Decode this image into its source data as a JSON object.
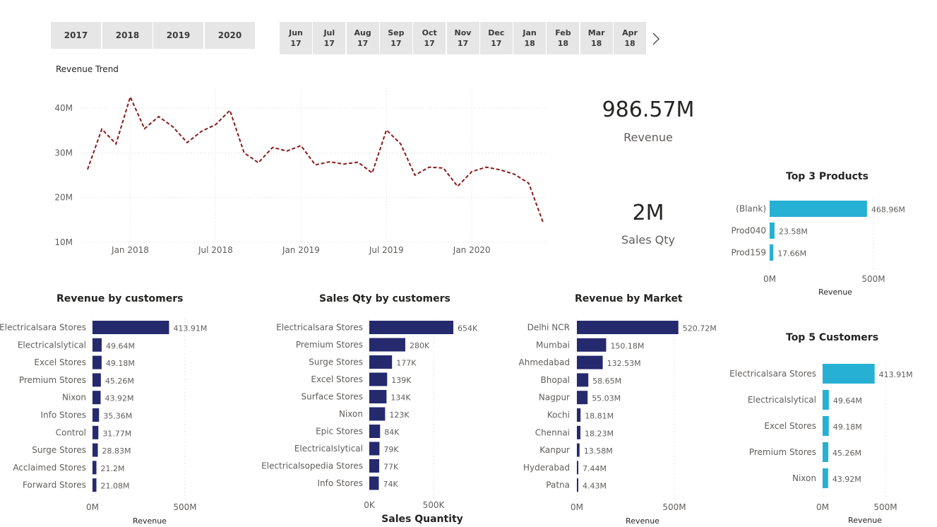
{
  "years": [
    "2017",
    "2018",
    "2019",
    "2020"
  ],
  "months": [
    {
      "m": "Jun",
      "y": "17"
    },
    {
      "m": "Jul",
      "y": "17"
    },
    {
      "m": "Aug",
      "y": "17"
    },
    {
      "m": "Sep",
      "y": "17"
    },
    {
      "m": "Oct",
      "y": "17"
    },
    {
      "m": "Nov",
      "y": "17"
    },
    {
      "m": "Dec",
      "y": "17"
    },
    {
      "m": "Jan",
      "y": "18"
    },
    {
      "m": "Feb",
      "y": "18"
    },
    {
      "m": "Mar",
      "y": "18"
    },
    {
      "m": "Apr",
      "y": "18"
    }
  ],
  "kpis": {
    "revenue_value": "986.57M",
    "revenue_label": "Revenue",
    "qty_value": "2M",
    "qty_label": "Sales Qty"
  },
  "colors": {
    "navy": "#252a6e",
    "cyan": "#26b0d4",
    "trend": "#8b1a1a"
  },
  "chart_data": [
    {
      "id": "revenue-trend",
      "type": "line",
      "title": "Revenue Trend",
      "x_start": "2017-10",
      "x_ticks": [
        "Jan 2018",
        "Jul 2018",
        "Jan 2019",
        "Jul 2019",
        "Jan 2020"
      ],
      "y_ticks": [
        "40M",
        "30M",
        "20M",
        "10M"
      ],
      "ylim": [
        10,
        40
      ],
      "grid": true,
      "values": [
        26.3,
        35.3,
        32.0,
        42.5,
        35.4,
        38.1,
        35.8,
        32.3,
        34.8,
        36.3,
        39.5,
        30.0,
        27.8,
        31.2,
        30.4,
        31.6,
        27.3,
        28.0,
        27.5,
        27.9,
        25.5,
        35.1,
        32.0,
        25.0,
        26.8,
        26.6,
        22.5,
        25.8,
        26.8,
        26.2,
        25.2,
        23.2,
        14.5
      ]
    },
    {
      "id": "top-3-products",
      "type": "bar",
      "orientation": "horizontal",
      "title": "Top 3 Products",
      "xlabel": "Revenue",
      "x_ticks": [
        "0M",
        "500M"
      ],
      "xlim": [
        0,
        500
      ],
      "categories": [
        "(Blank)",
        "Prod040",
        "Prod159"
      ],
      "values": [
        468.96,
        23.58,
        17.66
      ],
      "labels": [
        "468.96M",
        "23.58M",
        "17.66M"
      ]
    },
    {
      "id": "revenue-by-customers",
      "type": "bar",
      "orientation": "horizontal",
      "title": "Revenue by customers",
      "xlabel": "Revenue",
      "x_ticks": [
        "0M",
        "500M"
      ],
      "xlim": [
        0,
        500
      ],
      "categories": [
        "Electricalsara Stores",
        "Electricalslytical",
        "Excel Stores",
        "Premium Stores",
        "Nixon",
        "Info Stores",
        "Control",
        "Surge Stores",
        "Acclaimed Stores",
        "Forward Stores"
      ],
      "values": [
        413.91,
        49.64,
        49.18,
        45.26,
        43.92,
        35.36,
        31.77,
        28.83,
        21.2,
        21.08
      ],
      "labels": [
        "413.91M",
        "49.64M",
        "49.18M",
        "45.26M",
        "43.92M",
        "35.36M",
        "31.77M",
        "28.83M",
        "21.2M",
        "21.08M"
      ]
    },
    {
      "id": "sales-qty-by-customers",
      "type": "bar",
      "orientation": "horizontal",
      "title": "Sales Qty by customers",
      "xlabel": "Sales Quantity",
      "x_ticks": [
        "0K",
        "500K"
      ],
      "xlim": [
        0,
        650
      ],
      "categories": [
        "Electricalsara Stores",
        "Premium Stores",
        "Surge Stores",
        "Excel Stores",
        "Surface Stores",
        "Nixon",
        "Epic Stores",
        "Electricalslytical",
        "Electricalsopedia Stores",
        "Info Stores"
      ],
      "values": [
        654,
        280,
        177,
        139,
        134,
        123,
        84,
        79,
        77,
        74
      ],
      "labels": [
        "654K",
        "280K",
        "177K",
        "139K",
        "134K",
        "123K",
        "84K",
        "79K",
        "77K",
        "74K"
      ]
    },
    {
      "id": "revenue-by-market",
      "type": "bar",
      "orientation": "horizontal",
      "title": "Revenue by Market",
      "xlabel": "Revenue",
      "x_ticks": [
        "0M",
        "500M"
      ],
      "xlim": [
        0,
        500
      ],
      "categories": [
        "Delhi NCR",
        "Mumbai",
        "Ahmedabad",
        "Bhopal",
        "Nagpur",
        "Kochi",
        "Chennai",
        "Kanpur",
        "Hyderabad",
        "Patna"
      ],
      "values": [
        520.72,
        150.18,
        132.53,
        58.65,
        55.03,
        18.81,
        18.23,
        13.58,
        7.44,
        4.43
      ],
      "labels": [
        "520.72M",
        "150.18M",
        "132.53M",
        "58.65M",
        "55.03M",
        "18.81M",
        "18.23M",
        "13.58M",
        "7.44M",
        "4.43M"
      ]
    },
    {
      "id": "top-5-customers",
      "type": "bar",
      "orientation": "horizontal",
      "title": "Top 5 Customers",
      "xlabel": "Revenue",
      "x_ticks": [
        "0M",
        "500M"
      ],
      "xlim": [
        0,
        500
      ],
      "categories": [
        "Electricalsara Stores",
        "Electricalslytical",
        "Excel Stores",
        "Premium Stores",
        "Nixon"
      ],
      "values": [
        413.91,
        49.64,
        49.18,
        45.26,
        43.92
      ],
      "labels": [
        "413.91M",
        "49.64M",
        "49.18M",
        "45.26M",
        "43.92M"
      ]
    }
  ]
}
